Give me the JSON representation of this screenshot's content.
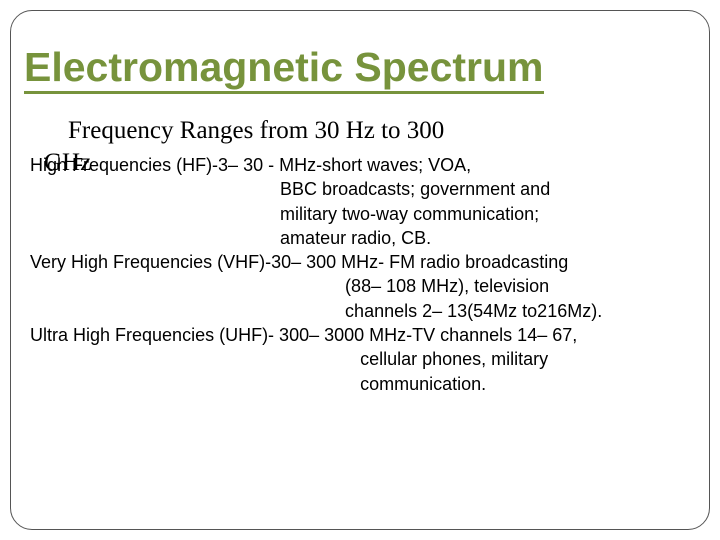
{
  "slide": {
    "title": "Electromagnetic Spectrum",
    "title_color": "#77933c",
    "title_fontsize": 41,
    "title_underline_color": "#77933c",
    "subtitle": "Frequency Ranges from 30 Hz to 300",
    "subtitle_overflow": "GHz",
    "subtitle_fontsize": 25,
    "subtitle_color": "#000000",
    "body_fontsize": 18,
    "body_color": "#000000",
    "body_text": "High Frequencies (HF)-3– 30 - MHz-short waves; VOA,\n                                                  BBC broadcasts; government and\n                                                  military two-way communication;\n                                                  amateur radio, CB.\nVery High Frequencies (VHF)-30– 300 MHz- FM radio broadcasting\n                                                               (88– 108 MHz), television\n                                                               channels 2– 13(54Mz to216Mz).\nUltra High Frequencies (UHF)- 300– 3000 MHz-TV channels 14– 67,\n                                                                  cellular phones, military\n                                                                  communication.",
    "frame_border_color": "#555555",
    "frame_border_radius": 22,
    "background_color": "#ffffff"
  }
}
